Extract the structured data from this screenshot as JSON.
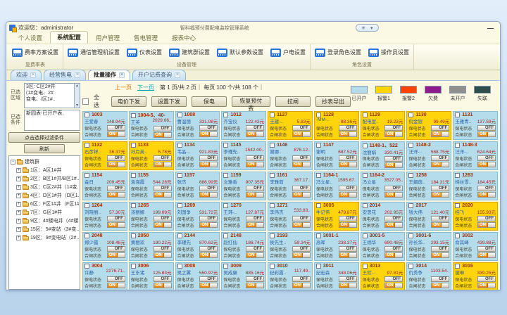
{
  "window": {
    "greeting": "欢迎您：administrator",
    "title": "智科福预付费配电监控管理系统",
    "minimize_label": "—",
    "quick_icons": [
      "✳",
      "▾"
    ]
  },
  "ribbon": {
    "tabs": [
      {
        "name": "personal-settings",
        "label": "个人设置",
        "active": false
      },
      {
        "name": "system-config",
        "label": "系统配置",
        "active": true
      },
      {
        "name": "user-management",
        "label": "用户管理",
        "active": false
      },
      {
        "name": "sales-management",
        "label": "售电管理",
        "active": false
      },
      {
        "name": "report-center",
        "label": "报表中心",
        "active": false
      }
    ],
    "groups": [
      {
        "label": "复费率表",
        "items": [
          {
            "name": "rate-plan-settings",
            "label": "费率方案设置"
          }
        ]
      },
      {
        "label": "设备管理",
        "items": [
          {
            "name": "comm-manager-settings",
            "label": "通信管理机设置"
          },
          {
            "name": "meter-settings",
            "label": "仪表设置"
          },
          {
            "name": "building-settings",
            "label": "建筑群设置"
          },
          {
            "name": "default-params-settings",
            "label": "默认参数设置"
          },
          {
            "name": "household-power-settings",
            "label": "户电设置"
          }
        ]
      },
      {
        "label": "角色设置",
        "items": [
          {
            "name": "login-role-settings",
            "label": "登录角色设置"
          },
          {
            "name": "operator-settings",
            "label": "操作员设置"
          }
        ]
      }
    ]
  },
  "doc_tabs": [
    {
      "name": "welcome",
      "label": "欢迎",
      "active": false
    },
    {
      "name": "sales",
      "label": "经营售电",
      "active": false
    },
    {
      "name": "batch-operation",
      "label": "批量操作",
      "active": true
    },
    {
      "name": "account-query",
      "label": "开户记费查询",
      "active": false
    }
  ],
  "sidebar": {
    "area_label": "已选区域",
    "area_lines": [
      "3区: C区2#井",
      "(1#变电、2#",
      "变电、/区1#.."
    ],
    "cond_label": "已选条件",
    "cond_text": "新园表-已开户表,",
    "filter_button": "点击选择过滤条件",
    "refresh_button": "刷新",
    "tree_root": "建筑群",
    "tree_items": [
      "1区：A区1#井",
      "2区：B区1#井/B区1#..",
      "3区：C区2#井（1#变..",
      "4区：D区1#井（D区1..",
      "6区：F区1#井（F区1#..",
      "7区：G区1#井",
      "9区：4#楼电井（4#楼..",
      "15区：5#变站（3#变..",
      "19区：9#变电站（2#.."
    ]
  },
  "toolbar": {
    "prev": "上一页",
    "next": "下一页",
    "page_info": "第 1 页/共 2 页｜ 每页 100 个/共 108 个｜",
    "select_all": "全选",
    "buttons": [
      {
        "name": "price-download-button",
        "label": "电价下发"
      },
      {
        "name": "settings-download-button",
        "label": "设置下发"
      },
      {
        "name": "protect-power-button",
        "label": "保电"
      },
      {
        "name": "restore-prepaid-button",
        "label": "恢复预付费"
      },
      {
        "name": "trip-switch-button",
        "label": "拉闸"
      },
      {
        "name": "meter-export-button",
        "label": "抄表导出"
      }
    ]
  },
  "legend": [
    {
      "label": "已开户",
      "color": "#b5dcea"
    },
    {
      "label": "报警1",
      "color": "#ffd400"
    },
    {
      "label": "报警2",
      "color": "#ff4200"
    },
    {
      "label": "欠费",
      "color": "#8d1b8d"
    },
    {
      "label": "未开户",
      "color": "#8f8f8f"
    },
    {
      "label": "失联",
      "color": "#2e4d4d"
    }
  ],
  "card_labels": {
    "protect": "保电状态",
    "switch": "合闸状态",
    "on": "ON",
    "off": "OFF"
  },
  "cards": [
    {
      "id": "1003",
      "name": "王爱春",
      "balance": "148.94元",
      "status": "open"
    },
    {
      "id": "1004-5、40-",
      "name": "王英",
      "balance": "2029.66..",
      "status": "open"
    },
    {
      "id": "1008",
      "name": "曹温丽",
      "balance": "331.08元",
      "status": "open"
    },
    {
      "id": "1012",
      "name": "齐宝仪",
      "balance": "122.42元",
      "status": "open"
    },
    {
      "id": "1127",
      "name": "王建-..",
      "balance": "5.83元",
      "status": "alarm1"
    },
    {
      "id": "1128",
      "name": "-MM-..",
      "balance": "88.36元",
      "status": "alarm1"
    },
    {
      "id": "1129",
      "name": "配电室..",
      "balance": "19.23元",
      "status": "alarm1"
    },
    {
      "id": "1130",
      "name": "倪金银",
      "balance": "99.49元",
      "status": "alarm1"
    },
    {
      "id": "1131",
      "name": "王雅青..",
      "balance": "137.59元",
      "status": "open"
    },
    {
      "id": "1132",
      "name": "石彦祥..",
      "balance": "36.37元",
      "status": "alarm1"
    },
    {
      "id": "1133",
      "name": "孙月英..",
      "balance": "5.78元",
      "status": "alarm1"
    },
    {
      "id": "1134",
      "name": "韦晶-..",
      "balance": "921.83元",
      "status": "open"
    },
    {
      "id": "1145",
      "name": "李瑾先..",
      "balance": "1542.00..",
      "status": "open"
    },
    {
      "id": "1146",
      "name": "谢娜..",
      "balance": "876.12..",
      "status": "open"
    },
    {
      "id": "1147",
      "name": "谢明",
      "balance": "687.52元",
      "status": "open"
    },
    {
      "id": "1148-1、522",
      "name": "沈丽娟",
      "balance": "330.41元",
      "status": "open"
    },
    {
      "id": "1148-2",
      "name": "汪洋-..",
      "balance": "568.75元",
      "status": "open"
    },
    {
      "id": "1148-3",
      "name": "汪洋-..",
      "balance": "624.64元",
      "status": "open"
    },
    {
      "id": "1154",
      "name": "金日",
      "balance": "209.45元",
      "status": "open"
    },
    {
      "id": "1155",
      "name": "袁海霞",
      "balance": "544.28元",
      "status": "open"
    },
    {
      "id": "1157",
      "name": "张杰",
      "balance": "686.99元",
      "status": "open"
    },
    {
      "id": "1159",
      "name": "文雅香",
      "balance": "907.35元",
      "status": "open"
    },
    {
      "id": "1161",
      "name": "李雅茹",
      "balance": "367.17..",
      "status": "open"
    },
    {
      "id": "1164-1",
      "name": "冯立星..",
      "balance": "1595.67..",
      "status": "open"
    },
    {
      "id": "1164-2",
      "name": "冯立星",
      "balance": "3527.05..",
      "status": "open"
    },
    {
      "id": "1258",
      "name": "王媚茵..",
      "balance": "184.31元",
      "status": "open"
    },
    {
      "id": "1263",
      "name": "桂丝雪..",
      "balance": "184.45元",
      "status": "open"
    },
    {
      "id": "1264",
      "name": "刘晓丽..",
      "balance": "57.30元",
      "status": "open"
    },
    {
      "id": "1265",
      "name": "汤丽娜",
      "balance": "199.09元",
      "status": "open"
    },
    {
      "id": "1269",
      "name": "刘国争",
      "balance": "531.72元",
      "status": "open"
    },
    {
      "id": "1270",
      "name": "王玮-..",
      "balance": "127.87元",
      "status": "open"
    },
    {
      "id": "1271",
      "name": "李伟杰",
      "balance": "533.83..",
      "status": "open"
    },
    {
      "id": "3005",
      "name": "牛记伟",
      "balance": "479.87元",
      "status": "alarm1"
    },
    {
      "id": "2014",
      "name": "安思花",
      "balance": "202.95元",
      "status": "open"
    },
    {
      "id": "2017",
      "name": "钱大伟",
      "balance": "121.40元",
      "status": "open"
    },
    {
      "id": "2020",
      "name": "桂飞",
      "balance": "155.93元",
      "status": "alarm1"
    },
    {
      "id": "2048",
      "name": "郑少霞",
      "balance": "108.48元",
      "status": "open"
    },
    {
      "id": "2050",
      "name": "黄丽欢",
      "balance": "190.22元",
      "status": "open"
    },
    {
      "id": "2144",
      "name": "李瑾先",
      "balance": "870.62元",
      "status": "open"
    },
    {
      "id": "2148",
      "name": "赵红仙",
      "balance": "186.74元",
      "status": "open"
    },
    {
      "id": "2193",
      "name": "侯先生..",
      "balance": "59.34元",
      "status": "open"
    },
    {
      "id": "3001-1",
      "name": "高晖",
      "balance": "238.37元",
      "status": "open"
    },
    {
      "id": "3001-5",
      "name": "王炳华",
      "balance": "690.48元",
      "status": "open"
    },
    {
      "id": "3001-6",
      "name": "孙长华..",
      "balance": "293.15元",
      "status": "open"
    },
    {
      "id": "3002",
      "name": "俞其峰",
      "balance": "439.88元",
      "status": "open"
    },
    {
      "id": "3004",
      "name": "许静",
      "balance": "2276.71..",
      "status": "open"
    },
    {
      "id": "3006",
      "name": "王东诸",
      "balance": "125.83元",
      "status": "open"
    },
    {
      "id": "3008",
      "name": "吴之翼",
      "balance": "550.97元",
      "status": "open"
    },
    {
      "id": "3009",
      "name": "吴成康",
      "balance": "885.16元",
      "status": "open"
    },
    {
      "id": "3010",
      "name": "纪彩霞..",
      "balance": "117.49..",
      "status": "open"
    },
    {
      "id": "3011",
      "name": "纪宏森",
      "balance": "348.06元",
      "status": "open"
    },
    {
      "id": "3013",
      "name": "王欣-..",
      "balance": "97.81元",
      "status": "alarm1"
    },
    {
      "id": "3014",
      "name": "仇秀争",
      "balance": "1103.54..",
      "status": "open"
    },
    {
      "id": "3016",
      "name": "谢琳",
      "balance": "339.25元",
      "status": "alarm1"
    }
  ]
}
